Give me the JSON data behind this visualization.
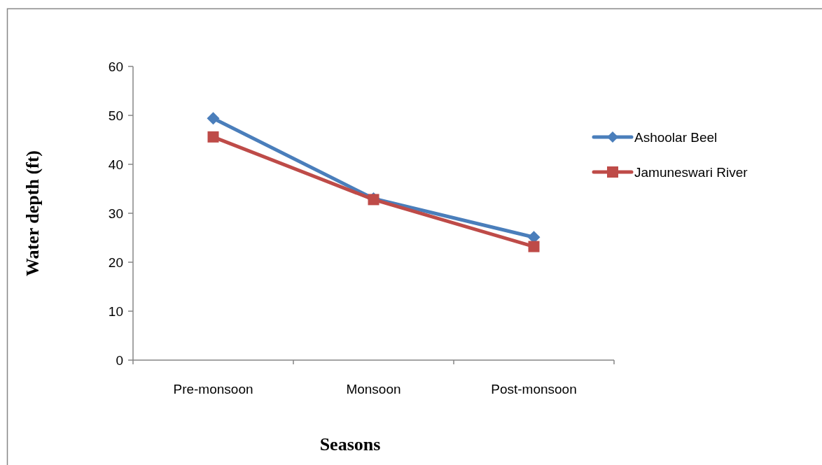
{
  "chart_data": {
    "type": "line",
    "xlabel": "Seasons",
    "ylabel": "Water depth (ft)",
    "categories": [
      "Pre-monsoon",
      "Monsoon",
      "Post-monsoon"
    ],
    "series": [
      {
        "name": "Ashoolar Beel",
        "color": "#4a7ebb",
        "marker": "diamond",
        "values": [
          49.4,
          33,
          25.1
        ]
      },
      {
        "name": "Jamuneswari River",
        "color": "#be4b48",
        "marker": "square",
        "values": [
          45.6,
          32.8,
          23.2
        ]
      }
    ],
    "ylim": [
      0,
      60
    ],
    "yticks": [
      0,
      10,
      20,
      30,
      40,
      50,
      60
    ],
    "grid": false,
    "legend": "right",
    "line_style": "solid"
  }
}
